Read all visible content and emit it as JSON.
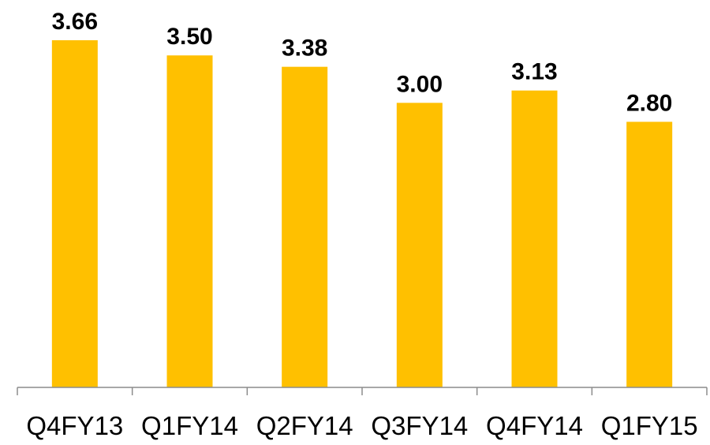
{
  "chart_data": {
    "type": "bar",
    "categories": [
      "Q4FY13",
      "Q1FY14",
      "Q2FY14",
      "Q3FY14",
      "Q4FY14",
      "Q1FY15"
    ],
    "values": [
      3.66,
      3.5,
      3.38,
      3.0,
      3.13,
      2.8
    ],
    "data_labels": [
      "3.66",
      "3.50",
      "3.38",
      "3.00",
      "3.13",
      "2.80"
    ],
    "title": "",
    "xlabel": "",
    "ylabel": "",
    "ylim": [
      0,
      4
    ],
    "grid": false,
    "legend": "none",
    "bar_color": "#FFC000"
  }
}
